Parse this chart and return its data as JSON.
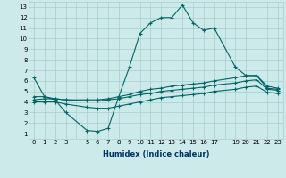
{
  "xlabel": "Humidex (Indice chaleur)",
  "bg_color": "#cceaea",
  "grid_color": "#aacccc",
  "line_color": "#006666",
  "xlim": [
    -0.5,
    23.5
  ],
  "ylim": [
    0.5,
    13.5
  ],
  "yticks": [
    1,
    2,
    3,
    4,
    5,
    6,
    7,
    8,
    9,
    10,
    11,
    12,
    13
  ],
  "line1_x": [
    0,
    1,
    2,
    3,
    5,
    6,
    7,
    8,
    9,
    10,
    11,
    12,
    13,
    14,
    15,
    16,
    17,
    19,
    20,
    21,
    22,
    23
  ],
  "line1_y": [
    6.3,
    4.5,
    4.2,
    3.0,
    1.3,
    1.2,
    1.5,
    4.5,
    7.3,
    10.5,
    11.5,
    12.0,
    12.0,
    13.2,
    11.5,
    10.8,
    11.0,
    7.3,
    6.5,
    6.5,
    5.5,
    5.3
  ],
  "line2_x": [
    0,
    1,
    2,
    3,
    5,
    6,
    7,
    8,
    9,
    10,
    11,
    12,
    13,
    14,
    15,
    16,
    17,
    19,
    20,
    21,
    22,
    23
  ],
  "line2_y": [
    4.5,
    4.5,
    4.3,
    4.2,
    4.2,
    4.2,
    4.3,
    4.5,
    4.7,
    5.0,
    5.2,
    5.3,
    5.5,
    5.6,
    5.7,
    5.8,
    6.0,
    6.3,
    6.5,
    6.5,
    5.3,
    5.2
  ],
  "line3_x": [
    0,
    1,
    2,
    3,
    5,
    6,
    7,
    8,
    9,
    10,
    11,
    12,
    13,
    14,
    15,
    16,
    17,
    19,
    20,
    21,
    22,
    23
  ],
  "line3_y": [
    4.2,
    4.3,
    4.3,
    4.2,
    4.1,
    4.1,
    4.2,
    4.3,
    4.5,
    4.7,
    4.8,
    5.0,
    5.1,
    5.2,
    5.3,
    5.4,
    5.6,
    5.8,
    6.0,
    6.1,
    5.2,
    5.1
  ],
  "line4_x": [
    0,
    1,
    2,
    3,
    5,
    6,
    7,
    8,
    9,
    10,
    11,
    12,
    13,
    14,
    15,
    16,
    17,
    19,
    20,
    21,
    22,
    23
  ],
  "line4_y": [
    4.0,
    4.0,
    4.0,
    3.8,
    3.5,
    3.4,
    3.4,
    3.6,
    3.8,
    4.0,
    4.2,
    4.4,
    4.5,
    4.6,
    4.7,
    4.8,
    5.0,
    5.2,
    5.4,
    5.5,
    4.9,
    4.8
  ],
  "xlabel_fontsize": 6.0,
  "tick_fontsize": 5.0
}
